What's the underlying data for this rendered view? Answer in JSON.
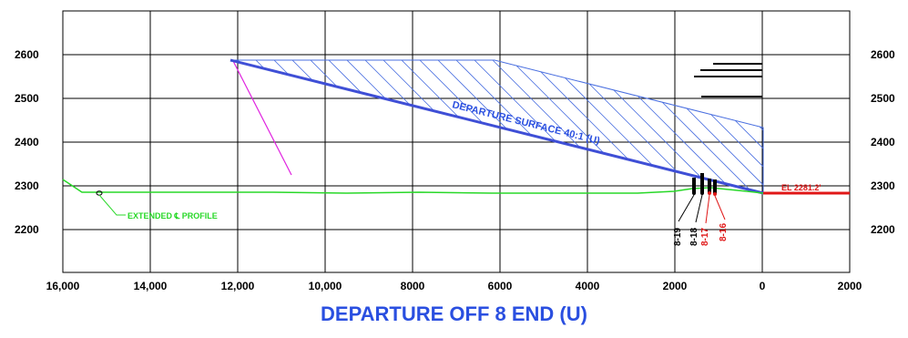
{
  "title": "DEPARTURE OFF 8 END (U)",
  "colors": {
    "grid": "#000000",
    "surface": "#3f4fd6",
    "hatch": "#4a6fe0",
    "ground": "#28d828",
    "magenta": "#e022e0",
    "red": "#e01818",
    "title": "#2a4fe0"
  },
  "x_axis": {
    "ticks": [
      "16,000",
      "14,000",
      "12,000",
      "10,000",
      "8000",
      "6000",
      "4000",
      "2000",
      "0",
      "2000"
    ]
  },
  "y_axis": {
    "ticks": [
      "2600",
      "2500",
      "2400",
      "2300",
      "2200"
    ]
  },
  "labels": {
    "surface": "DEPARTURE SURFACE 40:1 (U)",
    "profile": "EXTENDED ℄ PROFILE",
    "elevation": "EL 2281.2'",
    "obstacles": [
      {
        "text": "8-19",
        "color": "black"
      },
      {
        "text": "8-18",
        "color": "black"
      },
      {
        "text": "8-17",
        "color": "red"
      },
      {
        "text": "8-16",
        "color": "red"
      }
    ]
  }
}
